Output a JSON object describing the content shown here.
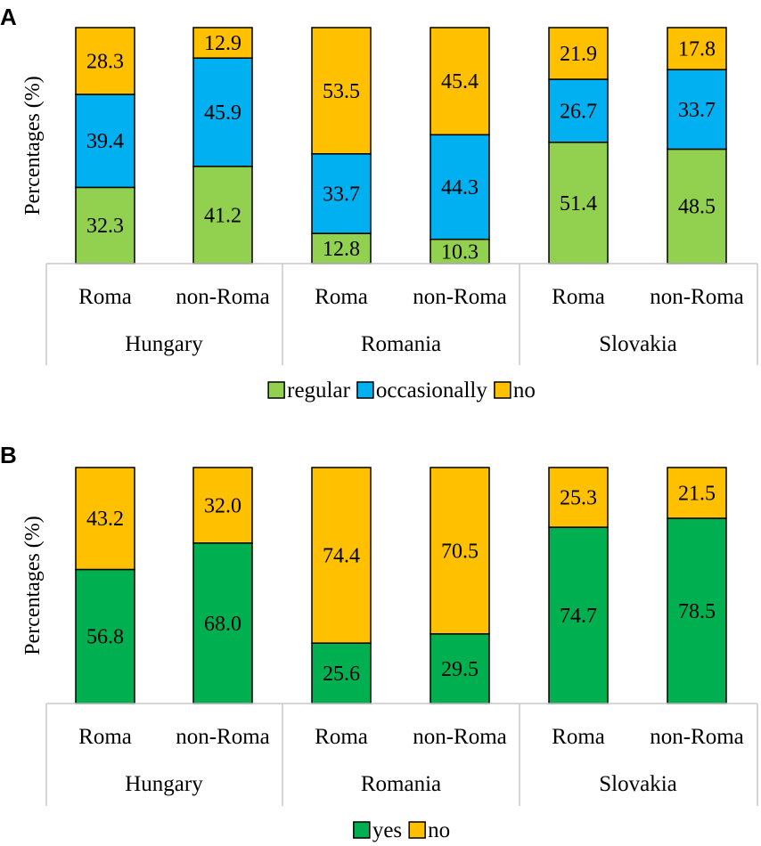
{
  "chart_data": [
    {
      "panel": "A",
      "type": "bar",
      "stacked": true,
      "ylabel": "Percentages (%)",
      "ylim": [
        0,
        100
      ],
      "groups": [
        "Hungary",
        "Romania",
        "Slovakia"
      ],
      "categories": [
        "Roma",
        "non-Roma",
        "Roma",
        "non-Roma",
        "Roma",
        "non-Roma"
      ],
      "series": [
        {
          "name": "regular",
          "color": "#92d050",
          "values": [
            32.3,
            41.2,
            12.8,
            10.3,
            51.4,
            48.5
          ]
        },
        {
          "name": "occasionally",
          "color": "#00b0f0",
          "values": [
            39.4,
            45.9,
            33.7,
            44.3,
            26.7,
            33.7
          ]
        },
        {
          "name": "no",
          "color": "#ffc000",
          "values": [
            28.3,
            12.9,
            53.5,
            45.4,
            21.9,
            17.8
          ]
        }
      ],
      "legend": "bottom"
    },
    {
      "panel": "B",
      "type": "bar",
      "stacked": true,
      "ylabel": "Percentages (%)",
      "ylim": [
        0,
        100
      ],
      "groups": [
        "Hungary",
        "Romania",
        "Slovakia"
      ],
      "categories": [
        "Roma",
        "non-Roma",
        "Roma",
        "non-Roma",
        "Roma",
        "non-Roma"
      ],
      "series": [
        {
          "name": "yes",
          "color": "#00b050",
          "values": [
            56.8,
            68.0,
            25.6,
            29.5,
            74.7,
            78.5
          ]
        },
        {
          "name": "no",
          "color": "#ffc000",
          "values": [
            43.2,
            32.0,
            74.4,
            70.5,
            25.3,
            21.5
          ]
        }
      ],
      "legend": "bottom"
    }
  ]
}
